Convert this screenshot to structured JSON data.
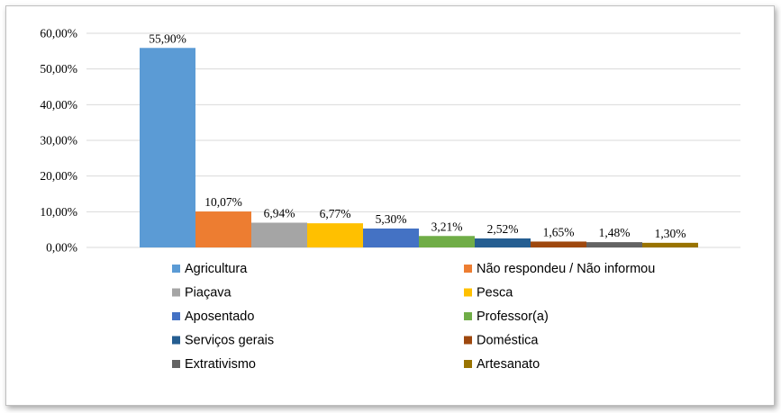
{
  "chart_data": {
    "type": "bar",
    "categories": [
      "Agricultura",
      "Não respondeu / Não informou",
      "Piaçava",
      "Pesca",
      "Aposentado",
      "Professor(a)",
      "Serviços gerais",
      "Doméstica",
      "Extrativismo",
      "Artesanato"
    ],
    "values": [
      55.9,
      10.07,
      6.94,
      6.77,
      5.3,
      3.21,
      2.52,
      1.65,
      1.48,
      1.3
    ],
    "data_labels": [
      "55,90%",
      "10,07%",
      "6,94%",
      "6,77%",
      "5,30%",
      "3,21%",
      "2,52%",
      "1,65%",
      "1,48%",
      "1,30%"
    ],
    "colors": [
      "#5b9bd5",
      "#ed7d31",
      "#a5a5a5",
      "#ffc000",
      "#4472c4",
      "#70ad47",
      "#255e91",
      "#9e480e",
      "#636363",
      "#997300"
    ],
    "y_ticks": [
      "0,00%",
      "10,00%",
      "20,00%",
      "30,00%",
      "40,00%",
      "50,00%",
      "60,00%"
    ],
    "ylim": [
      0,
      60
    ],
    "grid": true,
    "legend_position": "bottom",
    "title": "",
    "xlabel": "",
    "ylabel": ""
  }
}
